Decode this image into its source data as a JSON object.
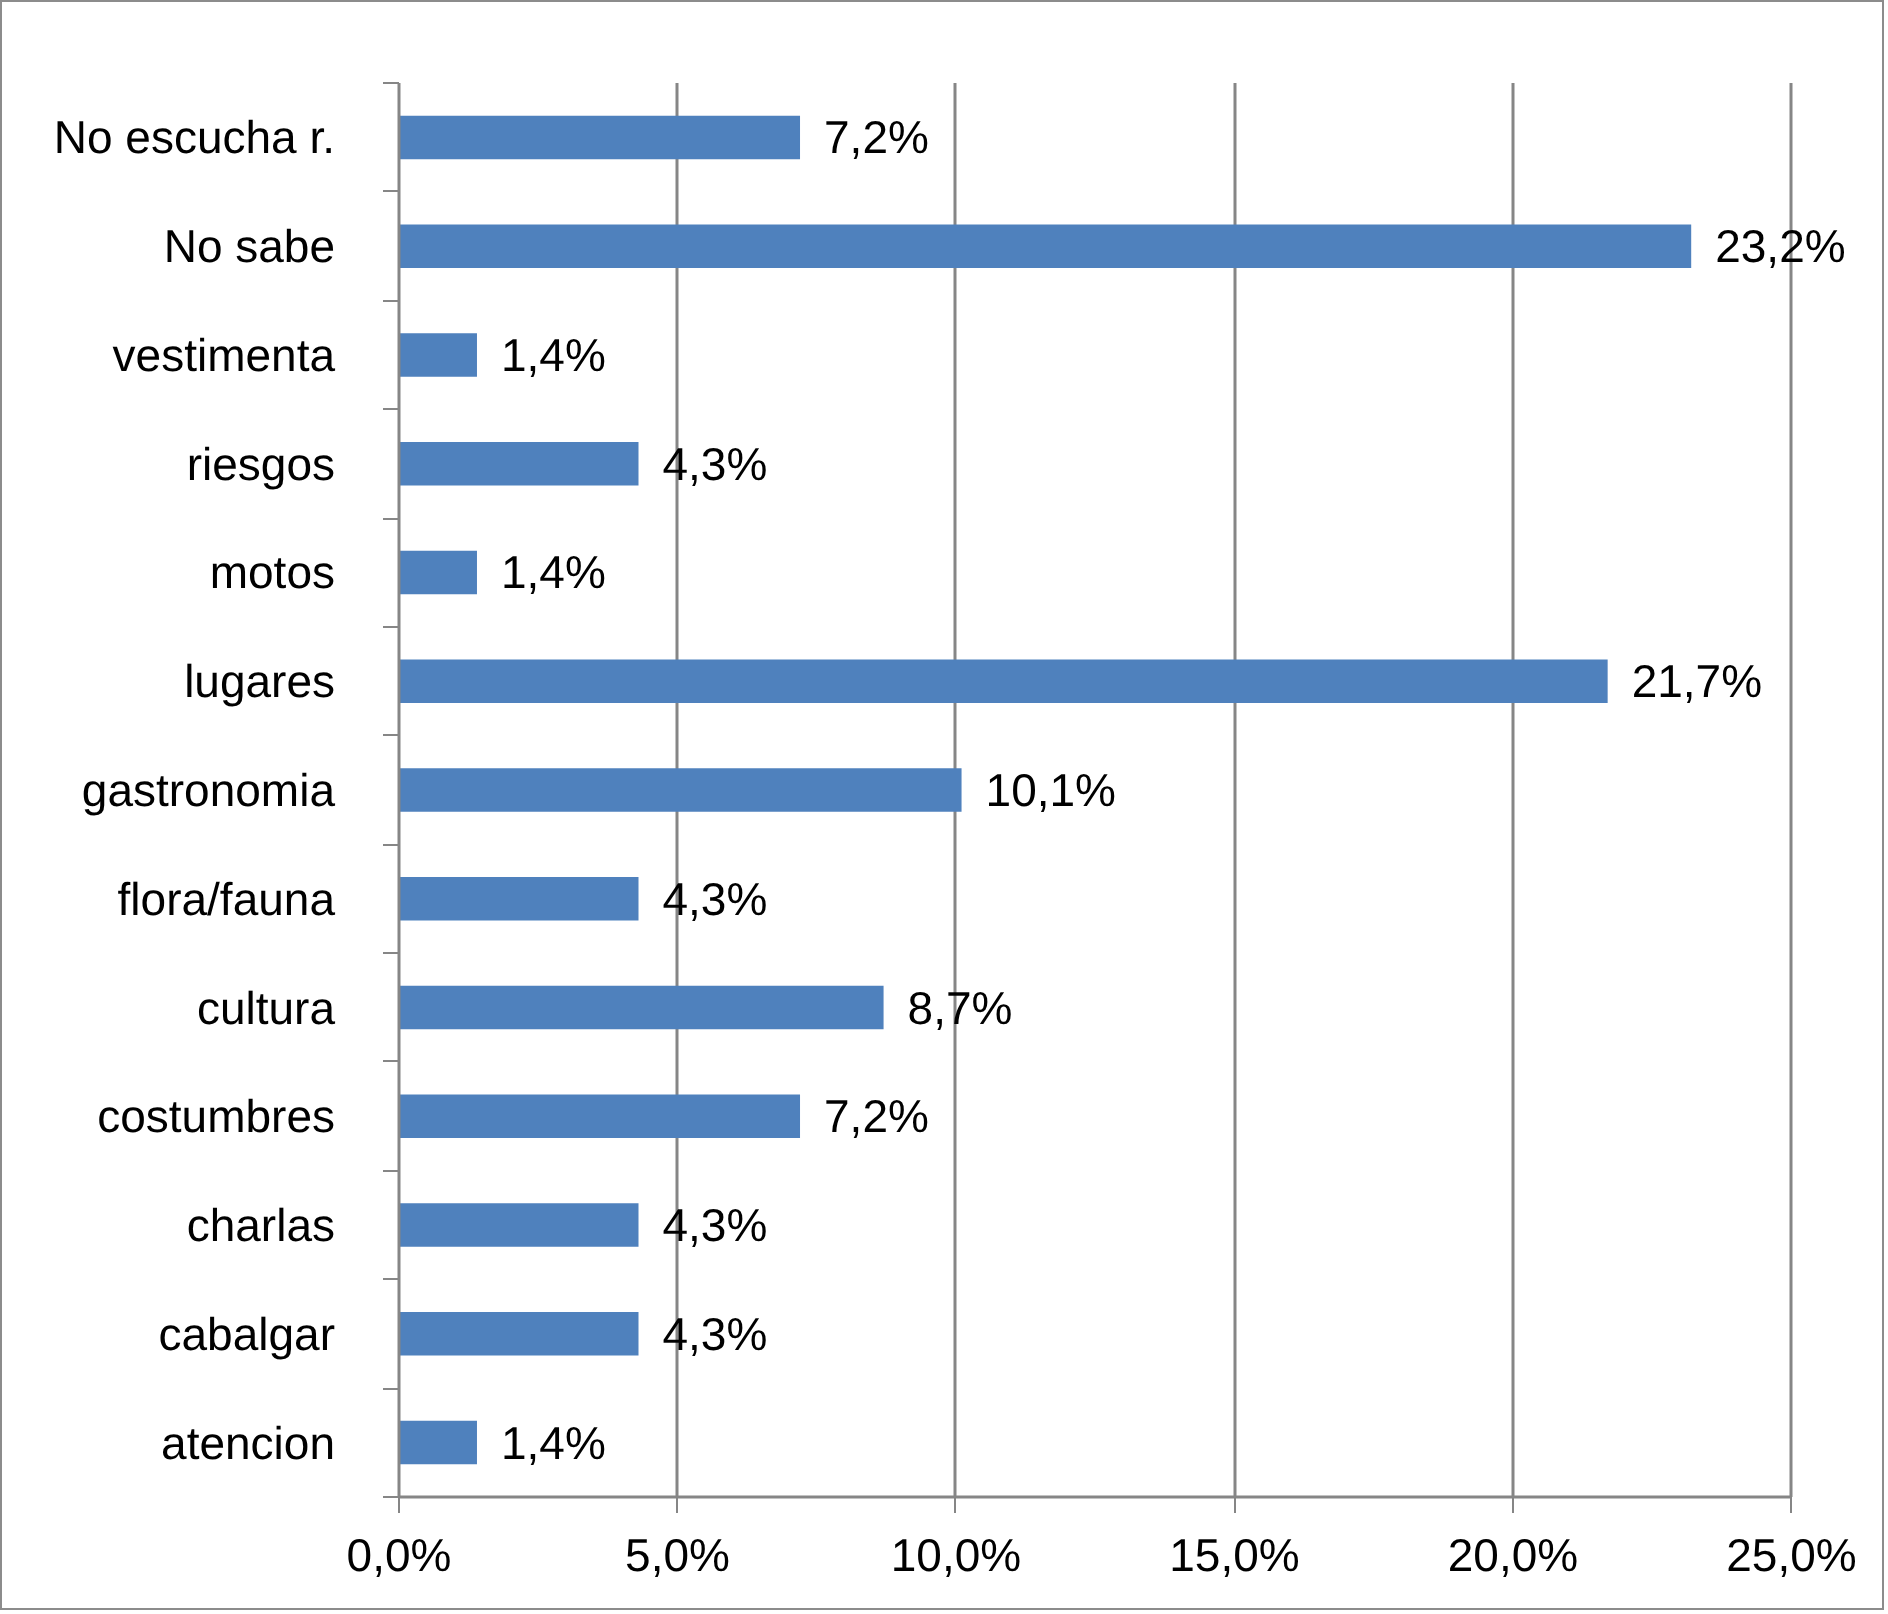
{
  "chart_data": {
    "type": "bar",
    "orientation": "horizontal",
    "categories": [
      "No escucha r.",
      "No sabe",
      "vestimenta",
      "riesgos",
      "motos",
      "lugares",
      "gastronomia",
      "flora/fauna",
      "cultura",
      "costumbres",
      "charlas",
      "cabalgar",
      "atencion"
    ],
    "values": [
      7.2,
      23.2,
      1.4,
      4.3,
      1.4,
      21.7,
      10.1,
      4.3,
      8.7,
      7.2,
      4.3,
      4.3,
      1.4
    ],
    "value_labels": [
      "7,2%",
      "23,2%",
      "1,4%",
      "4,3%",
      "1,4%",
      "21,7%",
      "10,1%",
      "4,3%",
      "8,7%",
      "7,2%",
      "4,3%",
      "4,3%",
      "1,4%"
    ],
    "color": "#4f81bd",
    "xlim": [
      0,
      25
    ],
    "xticks": [
      {
        "value": 0,
        "label": "0,0%"
      },
      {
        "value": 5,
        "label": "5,0%"
      },
      {
        "value": 10,
        "label": "10,0%"
      },
      {
        "value": 15,
        "label": "15,0%"
      },
      {
        "value": 20,
        "label": "20,0%"
      },
      {
        "value": 25,
        "label": "25,0%"
      }
    ],
    "grid": "x"
  }
}
